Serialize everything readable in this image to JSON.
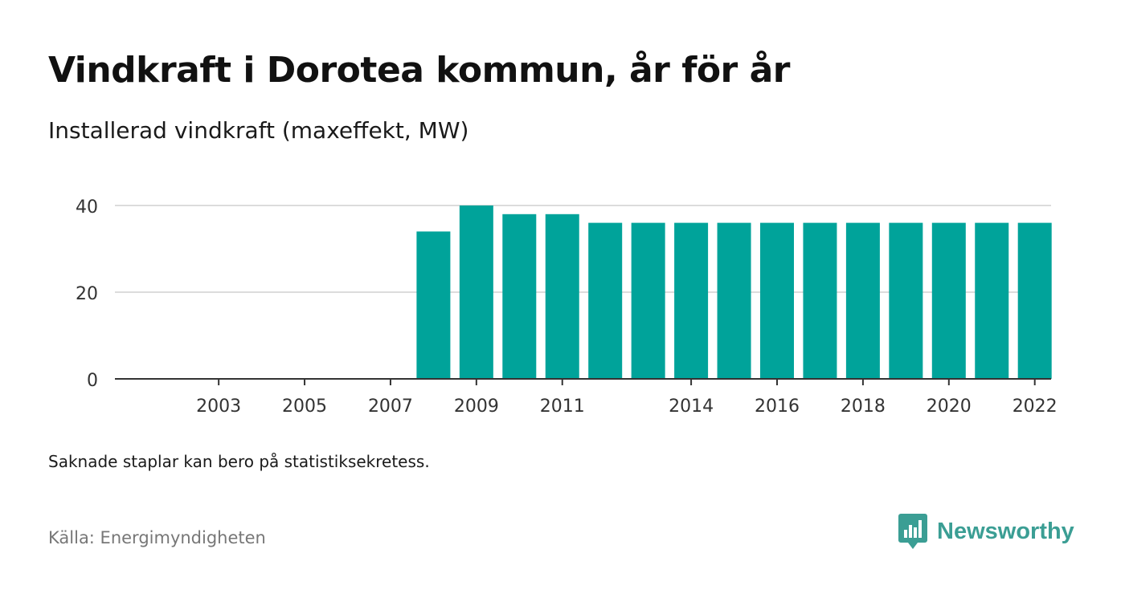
{
  "header": {
    "title": "Vindkraft i Dorotea kommun, år för år",
    "subtitle": "Installerad vindkraft (maxeffekt, MW)"
  },
  "note": "Saknade staplar kan bero på statistiksekretess.",
  "source": "Källa: Energimyndigheten",
  "brand": {
    "name": "Newsworthy",
    "icon": "newsworthy-logo-icon",
    "color": "#3b9e94"
  },
  "chart_data": {
    "type": "bar",
    "categories": [
      "2002",
      "2003",
      "2004",
      "2005",
      "2006",
      "2007",
      "2008",
      "2009",
      "2010",
      "2011",
      "2012",
      "2013",
      "2014",
      "2015",
      "2016",
      "2017",
      "2018",
      "2019",
      "2020",
      "2021",
      "2022"
    ],
    "values": [
      null,
      null,
      null,
      null,
      null,
      null,
      34,
      40,
      38,
      38,
      36,
      36,
      36,
      36,
      36,
      36,
      36,
      36,
      36,
      36,
      36
    ],
    "x_tick_labels": [
      "2003",
      "2005",
      "2007",
      "2009",
      "2011",
      "2014",
      "2016",
      "2018",
      "2020",
      "2022"
    ],
    "y_ticks": [
      0,
      20,
      40
    ],
    "ylim": [
      0,
      44
    ],
    "xlabel": "",
    "ylabel": "",
    "grid": true,
    "bar_color": "#00a39a"
  }
}
